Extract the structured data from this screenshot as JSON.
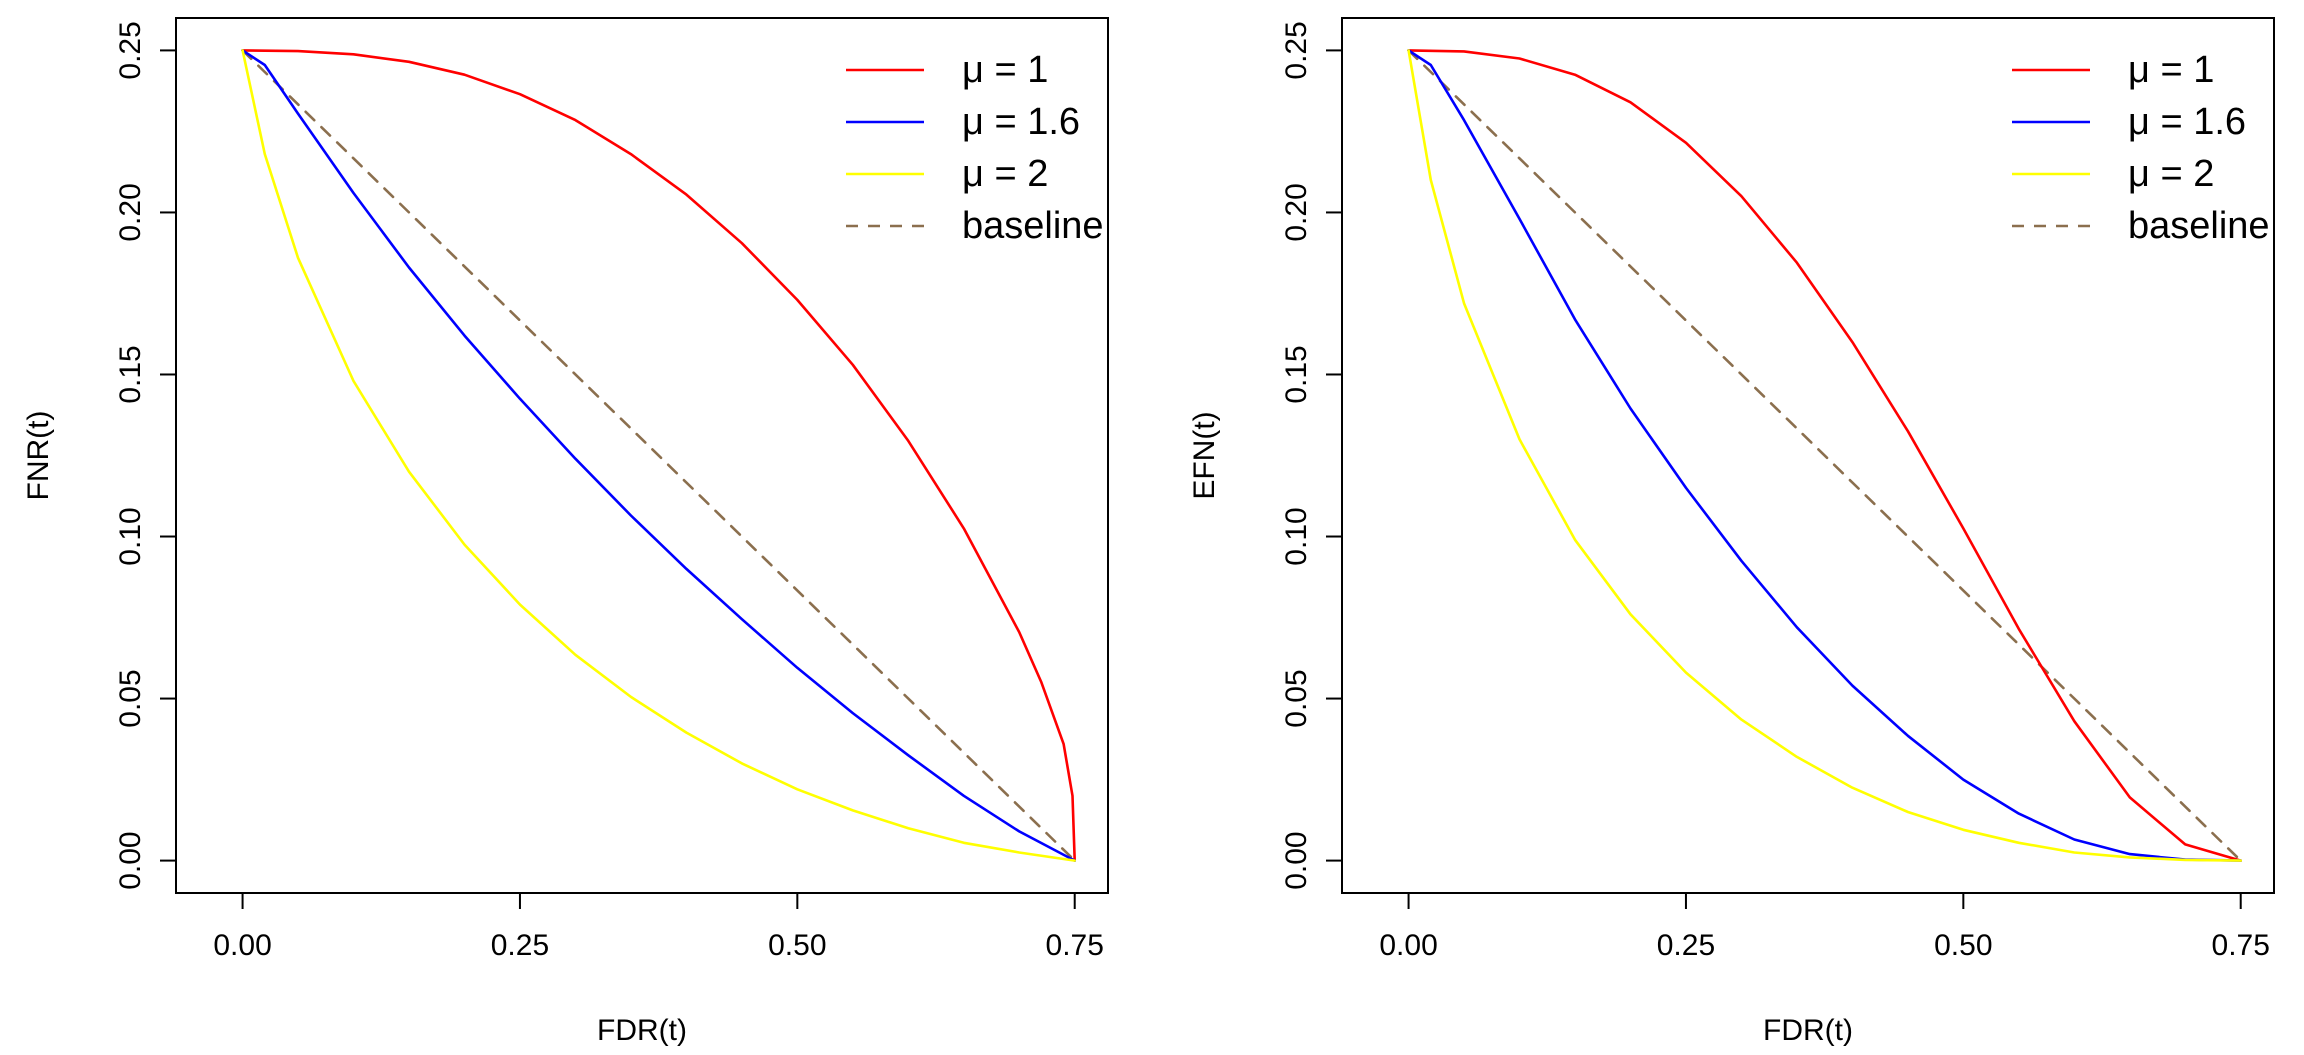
{
  "chart_data": [
    {
      "type": "line",
      "title": "",
      "xlabel": "FDR(t)",
      "ylabel": "FNR(t)",
      "xlim": [
        -0.06,
        0.78
      ],
      "ylim": [
        -0.01,
        0.26
      ],
      "x_ticks": [
        0.0,
        0.25,
        0.5,
        0.75
      ],
      "x_tick_labels": [
        "0.00",
        "0.25",
        "0.50",
        "0.75"
      ],
      "y_ticks": [
        0.0,
        0.05,
        0.1,
        0.15,
        0.2,
        0.25
      ],
      "y_tick_labels": [
        "0.00",
        "0.05",
        "0.10",
        "0.15",
        "0.20",
        "0.25"
      ],
      "grid": false,
      "legend_position": "top-right",
      "series": [
        {
          "name": "μ = 1",
          "color": "#ff0000",
          "dash": "solid",
          "points": [
            [
              0.0,
              0.25
            ],
            [
              0.05,
              0.2498
            ],
            [
              0.1,
              0.2488
            ],
            [
              0.15,
              0.2465
            ],
            [
              0.2,
              0.2425
            ],
            [
              0.25,
              0.2365
            ],
            [
              0.3,
              0.2285
            ],
            [
              0.35,
              0.218
            ],
            [
              0.4,
              0.2055
            ],
            [
              0.45,
              0.1905
            ],
            [
              0.5,
              0.173
            ],
            [
              0.55,
              0.153
            ],
            [
              0.6,
              0.1295
            ],
            [
              0.65,
              0.1025
            ],
            [
              0.7,
              0.0705
            ],
            [
              0.72,
              0.055
            ],
            [
              0.74,
              0.036
            ],
            [
              0.748,
              0.02
            ],
            [
              0.75,
              0.0
            ]
          ]
        },
        {
          "name": "μ = 1.6",
          "color": "#0000ff",
          "dash": "solid",
          "points": [
            [
              0.0,
              0.25
            ],
            [
              0.02,
              0.2455
            ],
            [
              0.05,
              0.2305
            ],
            [
              0.1,
              0.206
            ],
            [
              0.15,
              0.183
            ],
            [
              0.2,
              0.162
            ],
            [
              0.25,
              0.1425
            ],
            [
              0.3,
              0.124
            ],
            [
              0.35,
              0.1065
            ],
            [
              0.4,
              0.09
            ],
            [
              0.45,
              0.0745
            ],
            [
              0.5,
              0.0595
            ],
            [
              0.55,
              0.0455
            ],
            [
              0.6,
              0.0325
            ],
            [
              0.65,
              0.02
            ],
            [
              0.7,
              0.009
            ],
            [
              0.75,
              0.0
            ]
          ]
        },
        {
          "name": "μ = 2",
          "color": "#ffff00",
          "dash": "solid",
          "points": [
            [
              0.0,
              0.25
            ],
            [
              0.02,
              0.218
            ],
            [
              0.05,
              0.186
            ],
            [
              0.1,
              0.148
            ],
            [
              0.15,
              0.12
            ],
            [
              0.2,
              0.0975
            ],
            [
              0.25,
              0.079
            ],
            [
              0.3,
              0.0635
            ],
            [
              0.35,
              0.0505
            ],
            [
              0.4,
              0.0395
            ],
            [
              0.45,
              0.03
            ],
            [
              0.5,
              0.022
            ],
            [
              0.55,
              0.0155
            ],
            [
              0.6,
              0.01
            ],
            [
              0.65,
              0.0055
            ],
            [
              0.7,
              0.0025
            ],
            [
              0.75,
              0.0
            ]
          ]
        },
        {
          "name": "baseline",
          "color": "#8b6f4e",
          "dash": "dashed",
          "points": [
            [
              0.0,
              0.25
            ],
            [
              0.75,
              0.0
            ]
          ]
        }
      ]
    },
    {
      "type": "line",
      "title": "",
      "xlabel": "FDR(t)",
      "ylabel": "EFN(t)",
      "xlim": [
        -0.06,
        0.78
      ],
      "ylim": [
        -0.01,
        0.26
      ],
      "x_ticks": [
        0.0,
        0.25,
        0.5,
        0.75
      ],
      "x_tick_labels": [
        "0.00",
        "0.25",
        "0.50",
        "0.75"
      ],
      "y_ticks": [
        0.0,
        0.05,
        0.1,
        0.15,
        0.2,
        0.25
      ],
      "y_tick_labels": [
        "0.00",
        "0.05",
        "0.10",
        "0.15",
        "0.20",
        "0.25"
      ],
      "grid": false,
      "legend_position": "top-right",
      "series": [
        {
          "name": "μ = 1",
          "color": "#ff0000",
          "dash": "solid",
          "points": [
            [
              0.0,
              0.25
            ],
            [
              0.05,
              0.2497
            ],
            [
              0.1,
              0.2475
            ],
            [
              0.15,
              0.2425
            ],
            [
              0.2,
              0.234
            ],
            [
              0.25,
              0.2215
            ],
            [
              0.3,
              0.205
            ],
            [
              0.35,
              0.1845
            ],
            [
              0.4,
              0.16
            ],
            [
              0.45,
              0.1325
            ],
            [
              0.5,
              0.1025
            ],
            [
              0.55,
              0.0715
            ],
            [
              0.6,
              0.043
            ],
            [
              0.65,
              0.0195
            ],
            [
              0.7,
              0.005
            ],
            [
              0.75,
              0.0
            ]
          ]
        },
        {
          "name": "μ = 1.6",
          "color": "#0000ff",
          "dash": "solid",
          "points": [
            [
              0.0,
              0.25
            ],
            [
              0.02,
              0.2455
            ],
            [
              0.05,
              0.2285
            ],
            [
              0.1,
              0.198
            ],
            [
              0.15,
              0.167
            ],
            [
              0.2,
              0.1395
            ],
            [
              0.25,
              0.115
            ],
            [
              0.3,
              0.0925
            ],
            [
              0.35,
              0.072
            ],
            [
              0.4,
              0.054
            ],
            [
              0.45,
              0.0385
            ],
            [
              0.5,
              0.025
            ],
            [
              0.55,
              0.0145
            ],
            [
              0.6,
              0.0065
            ],
            [
              0.65,
              0.002
            ],
            [
              0.7,
              0.0003
            ],
            [
              0.75,
              0.0
            ]
          ]
        },
        {
          "name": "μ = 2",
          "color": "#ffff00",
          "dash": "solid",
          "points": [
            [
              0.0,
              0.25
            ],
            [
              0.02,
              0.21
            ],
            [
              0.05,
              0.172
            ],
            [
              0.1,
              0.13
            ],
            [
              0.15,
              0.099
            ],
            [
              0.2,
              0.076
            ],
            [
              0.25,
              0.058
            ],
            [
              0.3,
              0.0435
            ],
            [
              0.35,
              0.032
            ],
            [
              0.4,
              0.0225
            ],
            [
              0.45,
              0.015
            ],
            [
              0.5,
              0.0095
            ],
            [
              0.55,
              0.0055
            ],
            [
              0.6,
              0.0025
            ],
            [
              0.65,
              0.001
            ],
            [
              0.7,
              0.0002
            ],
            [
              0.75,
              0.0
            ]
          ]
        },
        {
          "name": "baseline",
          "color": "#8b6f4e",
          "dash": "dashed",
          "points": [
            [
              0.0,
              0.25
            ],
            [
              0.75,
              0.0
            ]
          ]
        }
      ]
    }
  ]
}
